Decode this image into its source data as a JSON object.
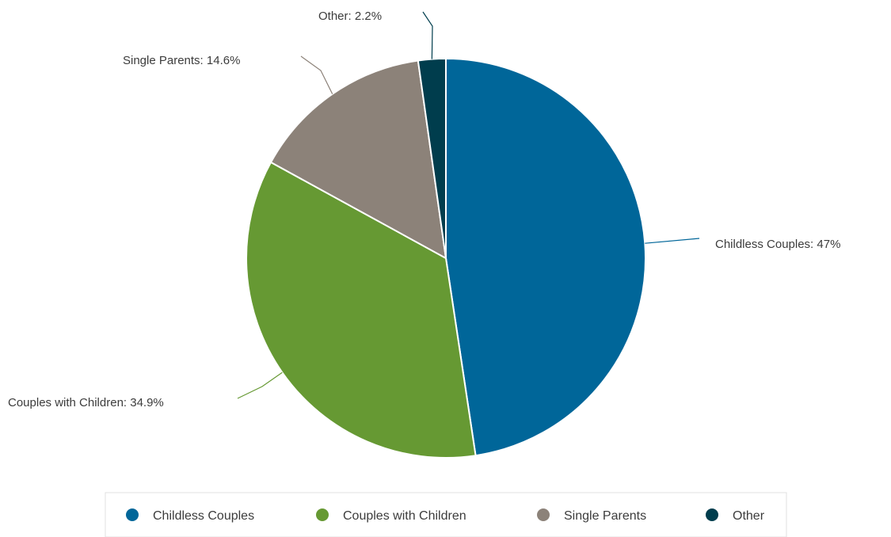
{
  "chart_data": {
    "type": "pie",
    "title": "",
    "start_angle_deg": 0,
    "direction": "clockwise",
    "legend_position": "bottom",
    "slices": [
      {
        "name": "Childless Couples",
        "value": 47,
        "label": "Childless Couples: 47%",
        "color": "#006699"
      },
      {
        "name": "Couples with Children",
        "value": 34.9,
        "label": "Couples with Children: 34.9%",
        "color": "#669933"
      },
      {
        "name": "Single Parents",
        "value": 14.6,
        "label": "Single Parents: 14.6%",
        "color": "#8c8279"
      },
      {
        "name": "Other",
        "value": 2.2,
        "label": "Other: 2.2%",
        "color": "#003d4d"
      }
    ]
  }
}
